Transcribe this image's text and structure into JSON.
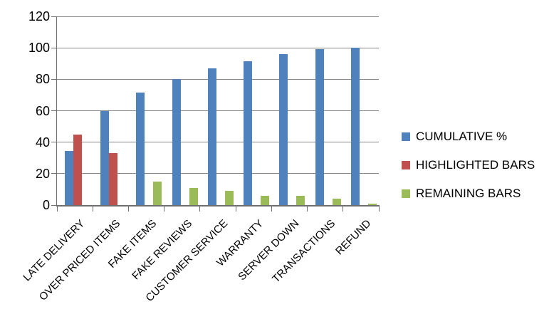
{
  "chart_data": {
    "type": "bar",
    "title": "",
    "categories": [
      "LATE DELIVERY",
      "OVER PRICED ITEMS",
      "FAKE ITEMS",
      "FAKE REVIEWS",
      "CUSTOMER SERVICE",
      "WARRANTY",
      "SERVER DOWN",
      "TRANSACTIONS",
      "REFUND"
    ],
    "series": [
      {
        "name": "CUMULATIVE %",
        "color": "#4F81BD",
        "values": [
          34.6,
          60,
          71.5,
          80,
          86.9,
          91.5,
          96.2,
          99.2,
          100
        ]
      },
      {
        "name": "HIGHLIGHTED BARS",
        "color": "#C0504D",
        "values": [
          45,
          33,
          null,
          null,
          null,
          null,
          null,
          null,
          null
        ]
      },
      {
        "name": "REMAINING BARS",
        "color": "#9BBB59",
        "values": [
          null,
          null,
          15,
          11,
          9,
          6,
          6,
          4,
          1
        ]
      }
    ],
    "y_axis": {
      "min": 0,
      "max": 120,
      "step": 20,
      "tick_labels": [
        "0",
        "20",
        "40",
        "60",
        "80",
        "100",
        "120"
      ]
    },
    "x_axis": {
      "label_rotation_deg": 45
    },
    "legend_position": "right",
    "grid": true,
    "gridline_color": "#868686",
    "axis_color": "#6F6F6F",
    "text_color": "#000000",
    "background_color": "#FFFFFF"
  }
}
